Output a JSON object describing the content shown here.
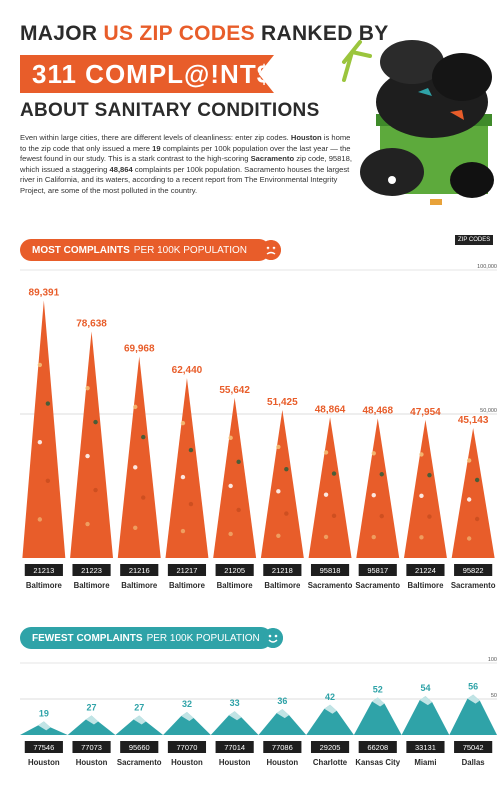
{
  "header": {
    "title_line1_pre": "MAJOR ",
    "title_line1_accent": "US ZIP CODES",
    "title_line1_post": " RANKED BY",
    "banner": "311 COMPL@!NT$",
    "title_line3": "ABOUT SANITARY CONDITIONS"
  },
  "intro": {
    "p1": "Even within large cities, there are different levels of cleanliness: enter zip codes.",
    "houston": "Houston",
    "p2": " is home to the zip code that only issued a mere ",
    "n19": "19",
    "p3": " complaints per 100k population over the last year — the fewest found in our study. This is a stark contrast to the high-scoring ",
    "sacramento": "Sacramento",
    "p4": " zip code, 95818, which issued a staggering ",
    "n48864": "48,864",
    "p5": " complaints per 100k population. Sacramento houses the largest river in California, and its waters, according to a recent report from The Environmental Integrity Project, are some of the most polluted in the country."
  },
  "zip_tag": "ZIP CODES",
  "sections": {
    "most_bold": "MOST COMPLAINTS",
    "most_rest": "PER 100K POPULATION",
    "fewest_bold": "FEWEST COMPLAINTS",
    "fewest_rest": "PER 100K POPULATION"
  },
  "colors": {
    "orange": "#e85d2a",
    "teal": "#2fa3a8",
    "teal_light": "#7cc3c6",
    "dark": "#2b2b2b"
  },
  "chart_data": [
    {
      "type": "bar",
      "categories": [
        "21213",
        "21223",
        "21216",
        "21217",
        "21205",
        "21218",
        "95818",
        "95817",
        "21224",
        "95822"
      ],
      "cities": [
        "Baltimore",
        "Baltimore",
        "Baltimore",
        "Baltimore",
        "Baltimore",
        "Baltimore",
        "Sacramento",
        "Sacramento",
        "Baltimore",
        "Sacramento"
      ],
      "values": [
        89391,
        78638,
        69968,
        62440,
        55642,
        51425,
        48864,
        48468,
        47954,
        45143
      ],
      "value_labels": [
        "89,391",
        "78,638",
        "69,968",
        "62,440",
        "55,642",
        "51,425",
        "48,864",
        "48,468",
        "47,954",
        "45,143"
      ],
      "ylim": [
        0,
        100000
      ],
      "ref_labels": [
        "100,000",
        "50,000"
      ],
      "color": "#e85d2a"
    },
    {
      "type": "bar",
      "categories": [
        "77546",
        "77073",
        "95660",
        "77070",
        "77014",
        "77086",
        "29205",
        "66208",
        "33131",
        "75042"
      ],
      "cities": [
        "Houston",
        "Houston",
        "Sacramento",
        "Houston",
        "Houston",
        "Houston",
        "Charlotte",
        "Kansas City",
        "Miami",
        "Dallas"
      ],
      "values": [
        19,
        27,
        27,
        32,
        33,
        36,
        42,
        52,
        54,
        56
      ],
      "value_labels": [
        "19",
        "27",
        "27",
        "32",
        "33",
        "36",
        "42",
        "52",
        "54",
        "56"
      ],
      "ylim": [
        0,
        100
      ],
      "ref_labels": [
        "100",
        "50"
      ],
      "color": "#2fa3a8"
    }
  ]
}
